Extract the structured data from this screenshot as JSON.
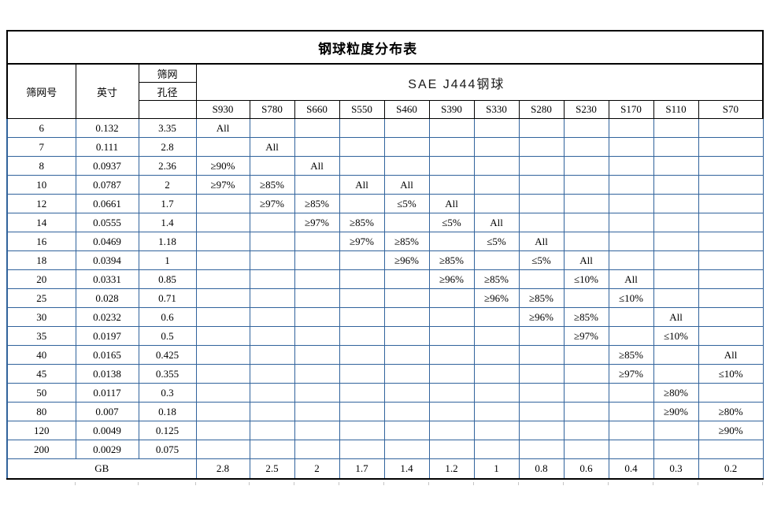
{
  "title": "钢球粒度分布表",
  "header": {
    "mesh_label": "筛网号",
    "inch_label": "英寸",
    "aperture_line1": "筛网",
    "aperture_line2": "孔径",
    "group_label": "SAE J444钢球",
    "columns": [
      "S930",
      "S780",
      "S660",
      "S550",
      "S460",
      "S390",
      "S330",
      "S280",
      "S230",
      "S170",
      "S110",
      "S70"
    ]
  },
  "rows": [
    {
      "mesh": "6",
      "inch": "0.132",
      "aperture": "3.35",
      "cells": [
        "All",
        "",
        "",
        "",
        "",
        "",
        "",
        "",
        "",
        "",
        "",
        ""
      ]
    },
    {
      "mesh": "7",
      "inch": "0.111",
      "aperture": "2.8",
      "cells": [
        "",
        "All",
        "",
        "",
        "",
        "",
        "",
        "",
        "",
        "",
        "",
        ""
      ]
    },
    {
      "mesh": "8",
      "inch": "0.0937",
      "aperture": "2.36",
      "cells": [
        "≥90%",
        "",
        "All",
        "",
        "",
        "",
        "",
        "",
        "",
        "",
        "",
        ""
      ]
    },
    {
      "mesh": "10",
      "inch": "0.0787",
      "aperture": "2",
      "cells": [
        "≥97%",
        "≥85%",
        "",
        "All",
        "All",
        "",
        "",
        "",
        "",
        "",
        "",
        ""
      ]
    },
    {
      "mesh": "12",
      "inch": "0.0661",
      "aperture": "1.7",
      "cells": [
        "",
        "≥97%",
        "≥85%",
        "",
        "≤5%",
        "All",
        "",
        "",
        "",
        "",
        "",
        ""
      ]
    },
    {
      "mesh": "14",
      "inch": "0.0555",
      "aperture": "1.4",
      "cells": [
        "",
        "",
        "≥97%",
        "≥85%",
        "",
        "≤5%",
        "All",
        "",
        "",
        "",
        "",
        ""
      ]
    },
    {
      "mesh": "16",
      "inch": "0.0469",
      "aperture": "1.18",
      "cells": [
        "",
        "",
        "",
        "≥97%",
        "≥85%",
        "",
        "≤5%",
        "All",
        "",
        "",
        "",
        ""
      ]
    },
    {
      "mesh": "18",
      "inch": "0.0394",
      "aperture": "1",
      "cells": [
        "",
        "",
        "",
        "",
        "≥96%",
        "≥85%",
        "",
        "≤5%",
        "All",
        "",
        "",
        ""
      ]
    },
    {
      "mesh": "20",
      "inch": "0.0331",
      "aperture": "0.85",
      "cells": [
        "",
        "",
        "",
        "",
        "",
        "≥96%",
        "≥85%",
        "",
        "≤10%",
        "All",
        "",
        ""
      ]
    },
    {
      "mesh": "25",
      "inch": "0.028",
      "aperture": "0.71",
      "cells": [
        "",
        "",
        "",
        "",
        "",
        "",
        "≥96%",
        "≥85%",
        "",
        "≤10%",
        "",
        ""
      ]
    },
    {
      "mesh": "30",
      "inch": "0.0232",
      "aperture": "0.6",
      "cells": [
        "",
        "",
        "",
        "",
        "",
        "",
        "",
        "≥96%",
        "≥85%",
        "",
        "All",
        ""
      ]
    },
    {
      "mesh": "35",
      "inch": "0.0197",
      "aperture": "0.5",
      "cells": [
        "",
        "",
        "",
        "",
        "",
        "",
        "",
        "",
        "≥97%",
        "",
        "≤10%",
        ""
      ]
    },
    {
      "mesh": "40",
      "inch": "0.0165",
      "aperture": "0.425",
      "cells": [
        "",
        "",
        "",
        "",
        "",
        "",
        "",
        "",
        "",
        "≥85%",
        "",
        "All"
      ]
    },
    {
      "mesh": "45",
      "inch": "0.0138",
      "aperture": "0.355",
      "cells": [
        "",
        "",
        "",
        "",
        "",
        "",
        "",
        "",
        "",
        "≥97%",
        "",
        "≤10%"
      ]
    },
    {
      "mesh": "50",
      "inch": "0.0117",
      "aperture": "0.3",
      "cells": [
        "",
        "",
        "",
        "",
        "",
        "",
        "",
        "",
        "",
        "",
        "≥80%",
        ""
      ]
    },
    {
      "mesh": "80",
      "inch": "0.007",
      "aperture": "0.18",
      "cells": [
        "",
        "",
        "",
        "",
        "",
        "",
        "",
        "",
        "",
        "",
        "≥90%",
        "≥80%"
      ]
    },
    {
      "mesh": "120",
      "inch": "0.0049",
      "aperture": "0.125",
      "cells": [
        "",
        "",
        "",
        "",
        "",
        "",
        "",
        "",
        "",
        "",
        "",
        "≥90%"
      ]
    },
    {
      "mesh": "200",
      "inch": "0.0029",
      "aperture": "0.075",
      "cells": [
        "",
        "",
        "",
        "",
        "",
        "",
        "",
        "",
        "",
        "",
        "",
        ""
      ]
    }
  ],
  "footer": {
    "label": "GB",
    "values": [
      "2.8",
      "2.5",
      "2",
      "1.7",
      "1.4",
      "1.2",
      "1",
      "0.8",
      "0.6",
      "0.4",
      "0.3",
      "0.2"
    ]
  },
  "colors": {
    "grid_blue": "#31639c",
    "outline_black": "#000000",
    "background": "#ffffff"
  }
}
